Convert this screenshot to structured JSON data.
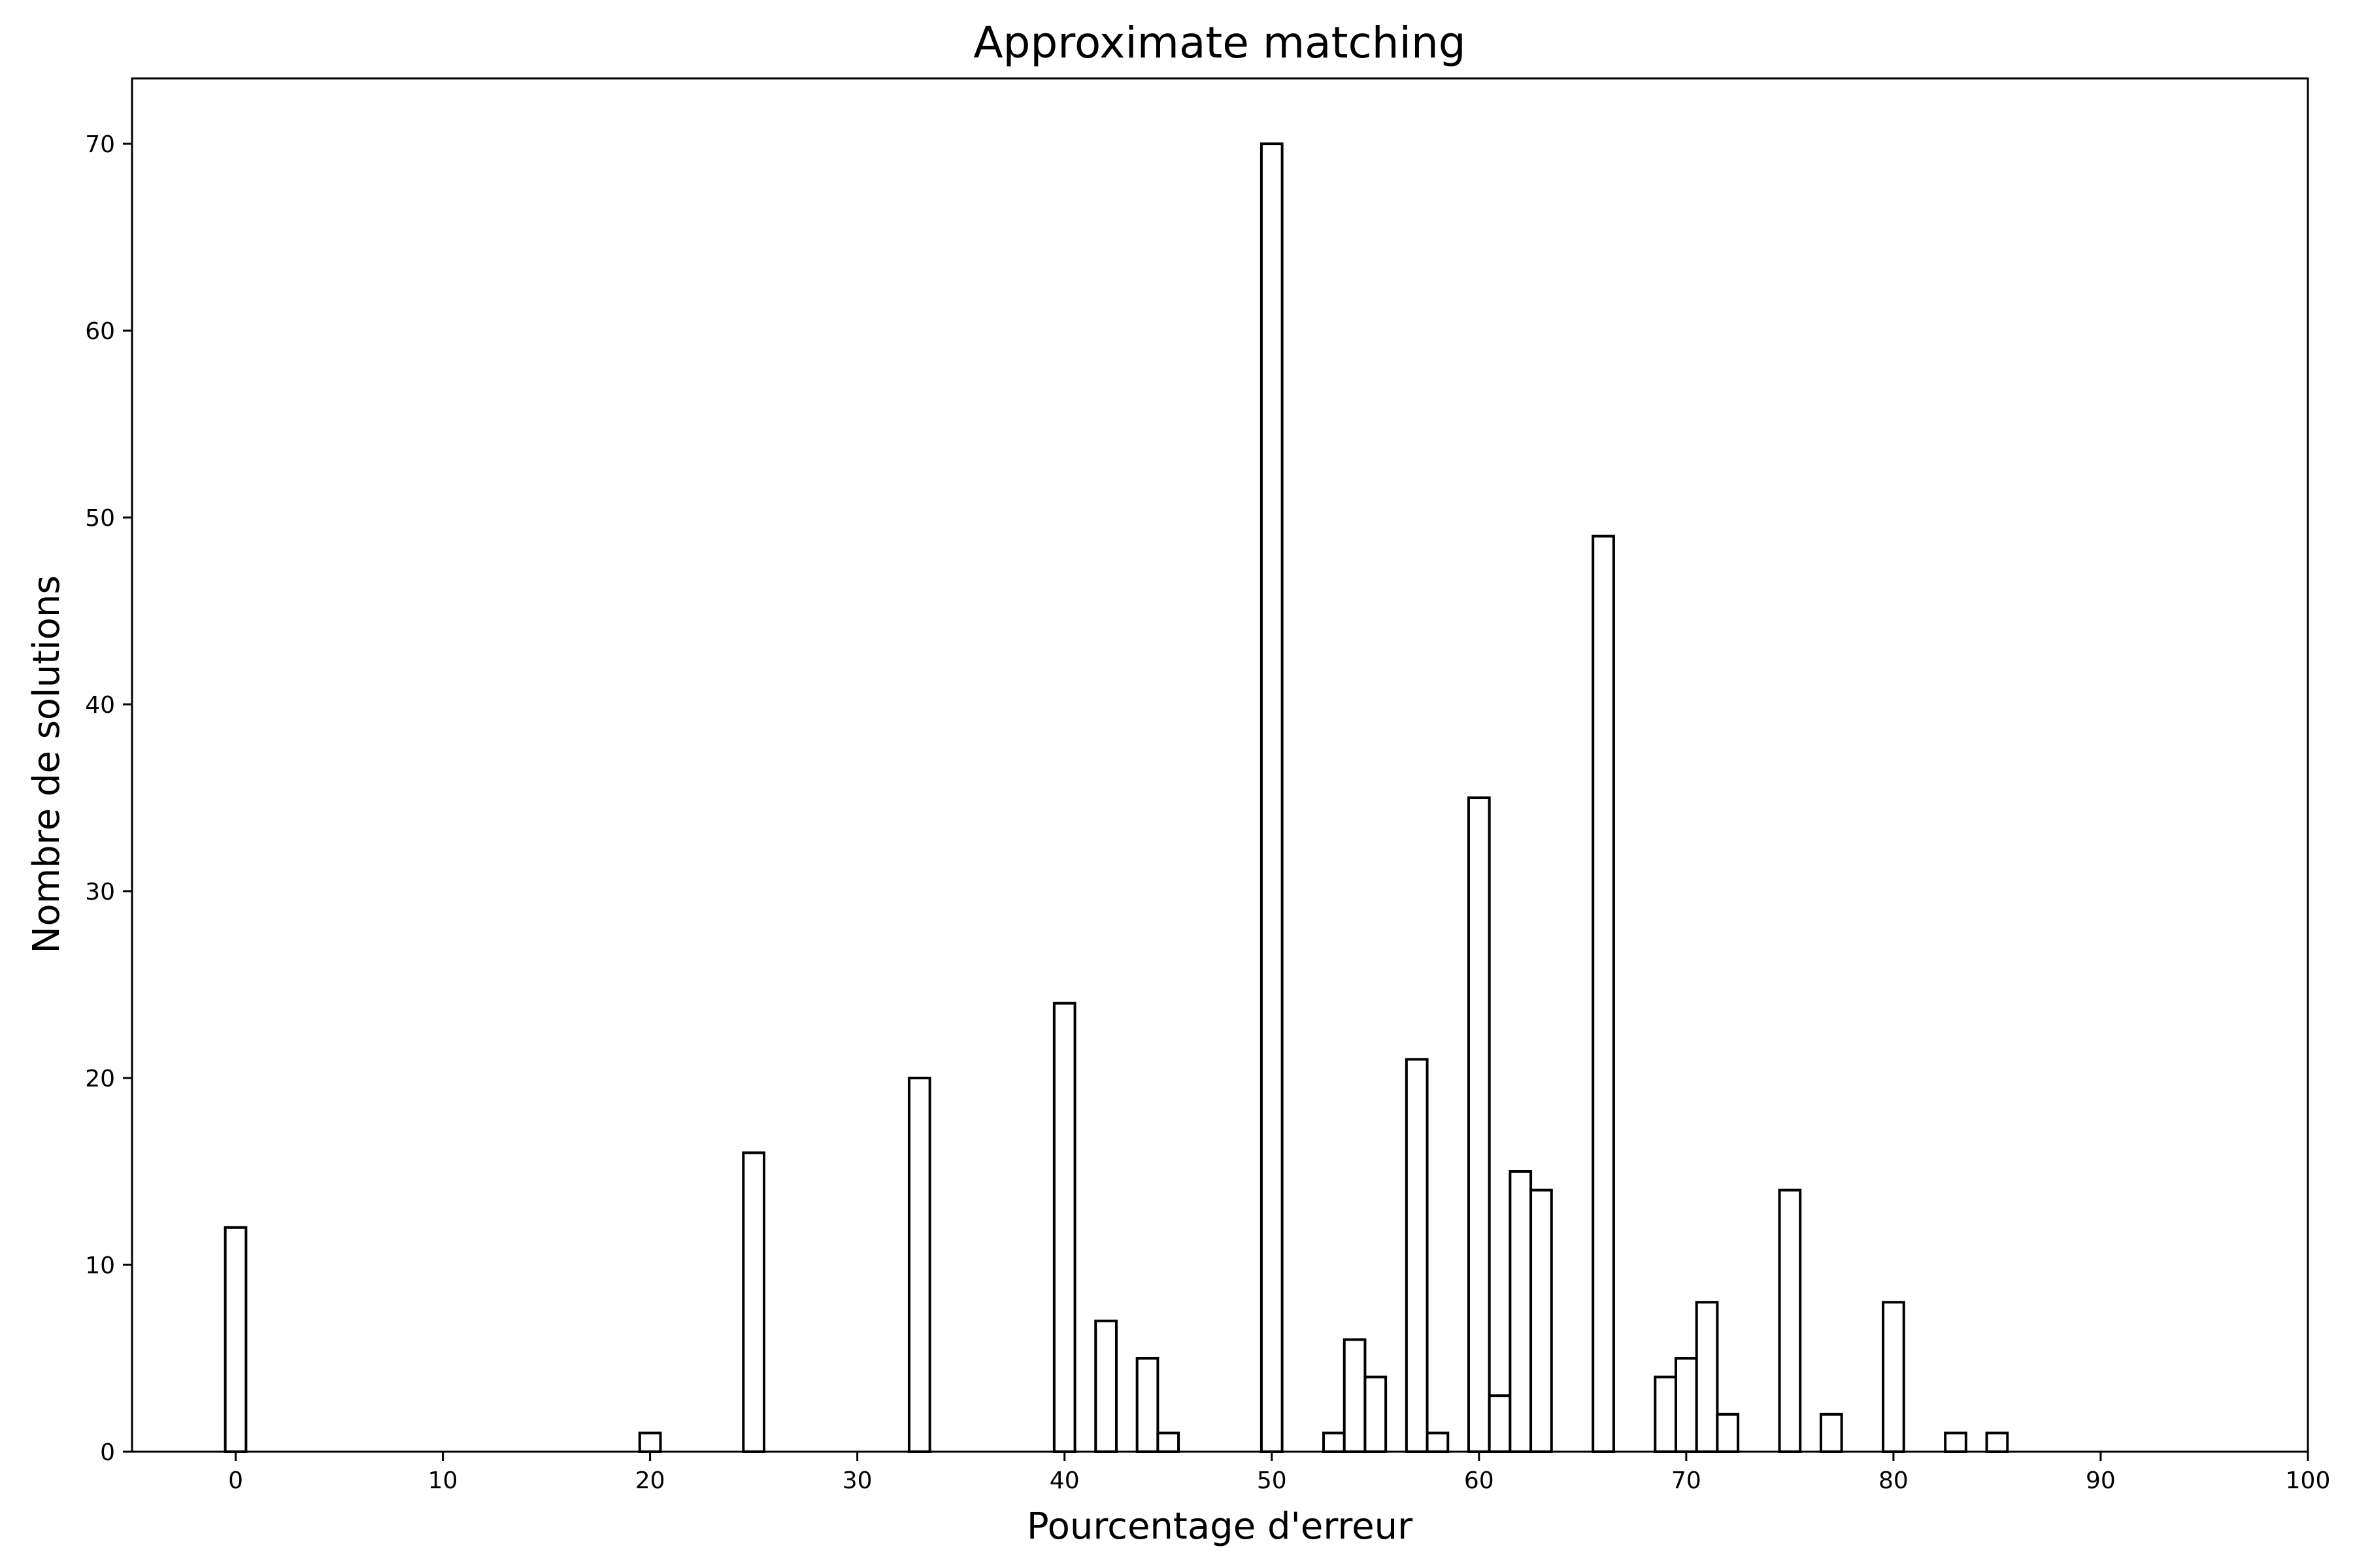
{
  "chart_data": {
    "type": "bar",
    "title": "Approximate matching",
    "xlabel": "Pourcentage d'erreur",
    "ylabel": "Nombre de solutions",
    "xlim": [
      -5,
      100
    ],
    "ylim": [
      0,
      73.5
    ],
    "xticks": [
      0,
      10,
      20,
      30,
      40,
      50,
      60,
      70,
      80,
      90,
      100
    ],
    "yticks": [
      0,
      10,
      20,
      30,
      40,
      50,
      60,
      70
    ],
    "grid": false,
    "bar_fill": "#ffffff",
    "bar_edge": "#000000",
    "bars": [
      {
        "x": 0,
        "value": 12
      },
      {
        "x": 20,
        "value": 1
      },
      {
        "x": 25,
        "value": 16
      },
      {
        "x": 33,
        "value": 20
      },
      {
        "x": 40,
        "value": 24
      },
      {
        "x": 42,
        "value": 7
      },
      {
        "x": 44,
        "value": 5
      },
      {
        "x": 45,
        "value": 1
      },
      {
        "x": 50,
        "value": 70
      },
      {
        "x": 53,
        "value": 1
      },
      {
        "x": 54,
        "value": 6
      },
      {
        "x": 55,
        "value": 4
      },
      {
        "x": 57,
        "value": 21
      },
      {
        "x": 58,
        "value": 1
      },
      {
        "x": 60,
        "value": 35
      },
      {
        "x": 61,
        "value": 3
      },
      {
        "x": 62,
        "value": 15
      },
      {
        "x": 63,
        "value": 14
      },
      {
        "x": 66,
        "value": 49
      },
      {
        "x": 69,
        "value": 4
      },
      {
        "x": 70,
        "value": 5
      },
      {
        "x": 71,
        "value": 8
      },
      {
        "x": 72,
        "value": 2
      },
      {
        "x": 75,
        "value": 14
      },
      {
        "x": 77,
        "value": 2
      },
      {
        "x": 80,
        "value": 8
      },
      {
        "x": 83,
        "value": 1
      },
      {
        "x": 85,
        "value": 1
      }
    ]
  }
}
